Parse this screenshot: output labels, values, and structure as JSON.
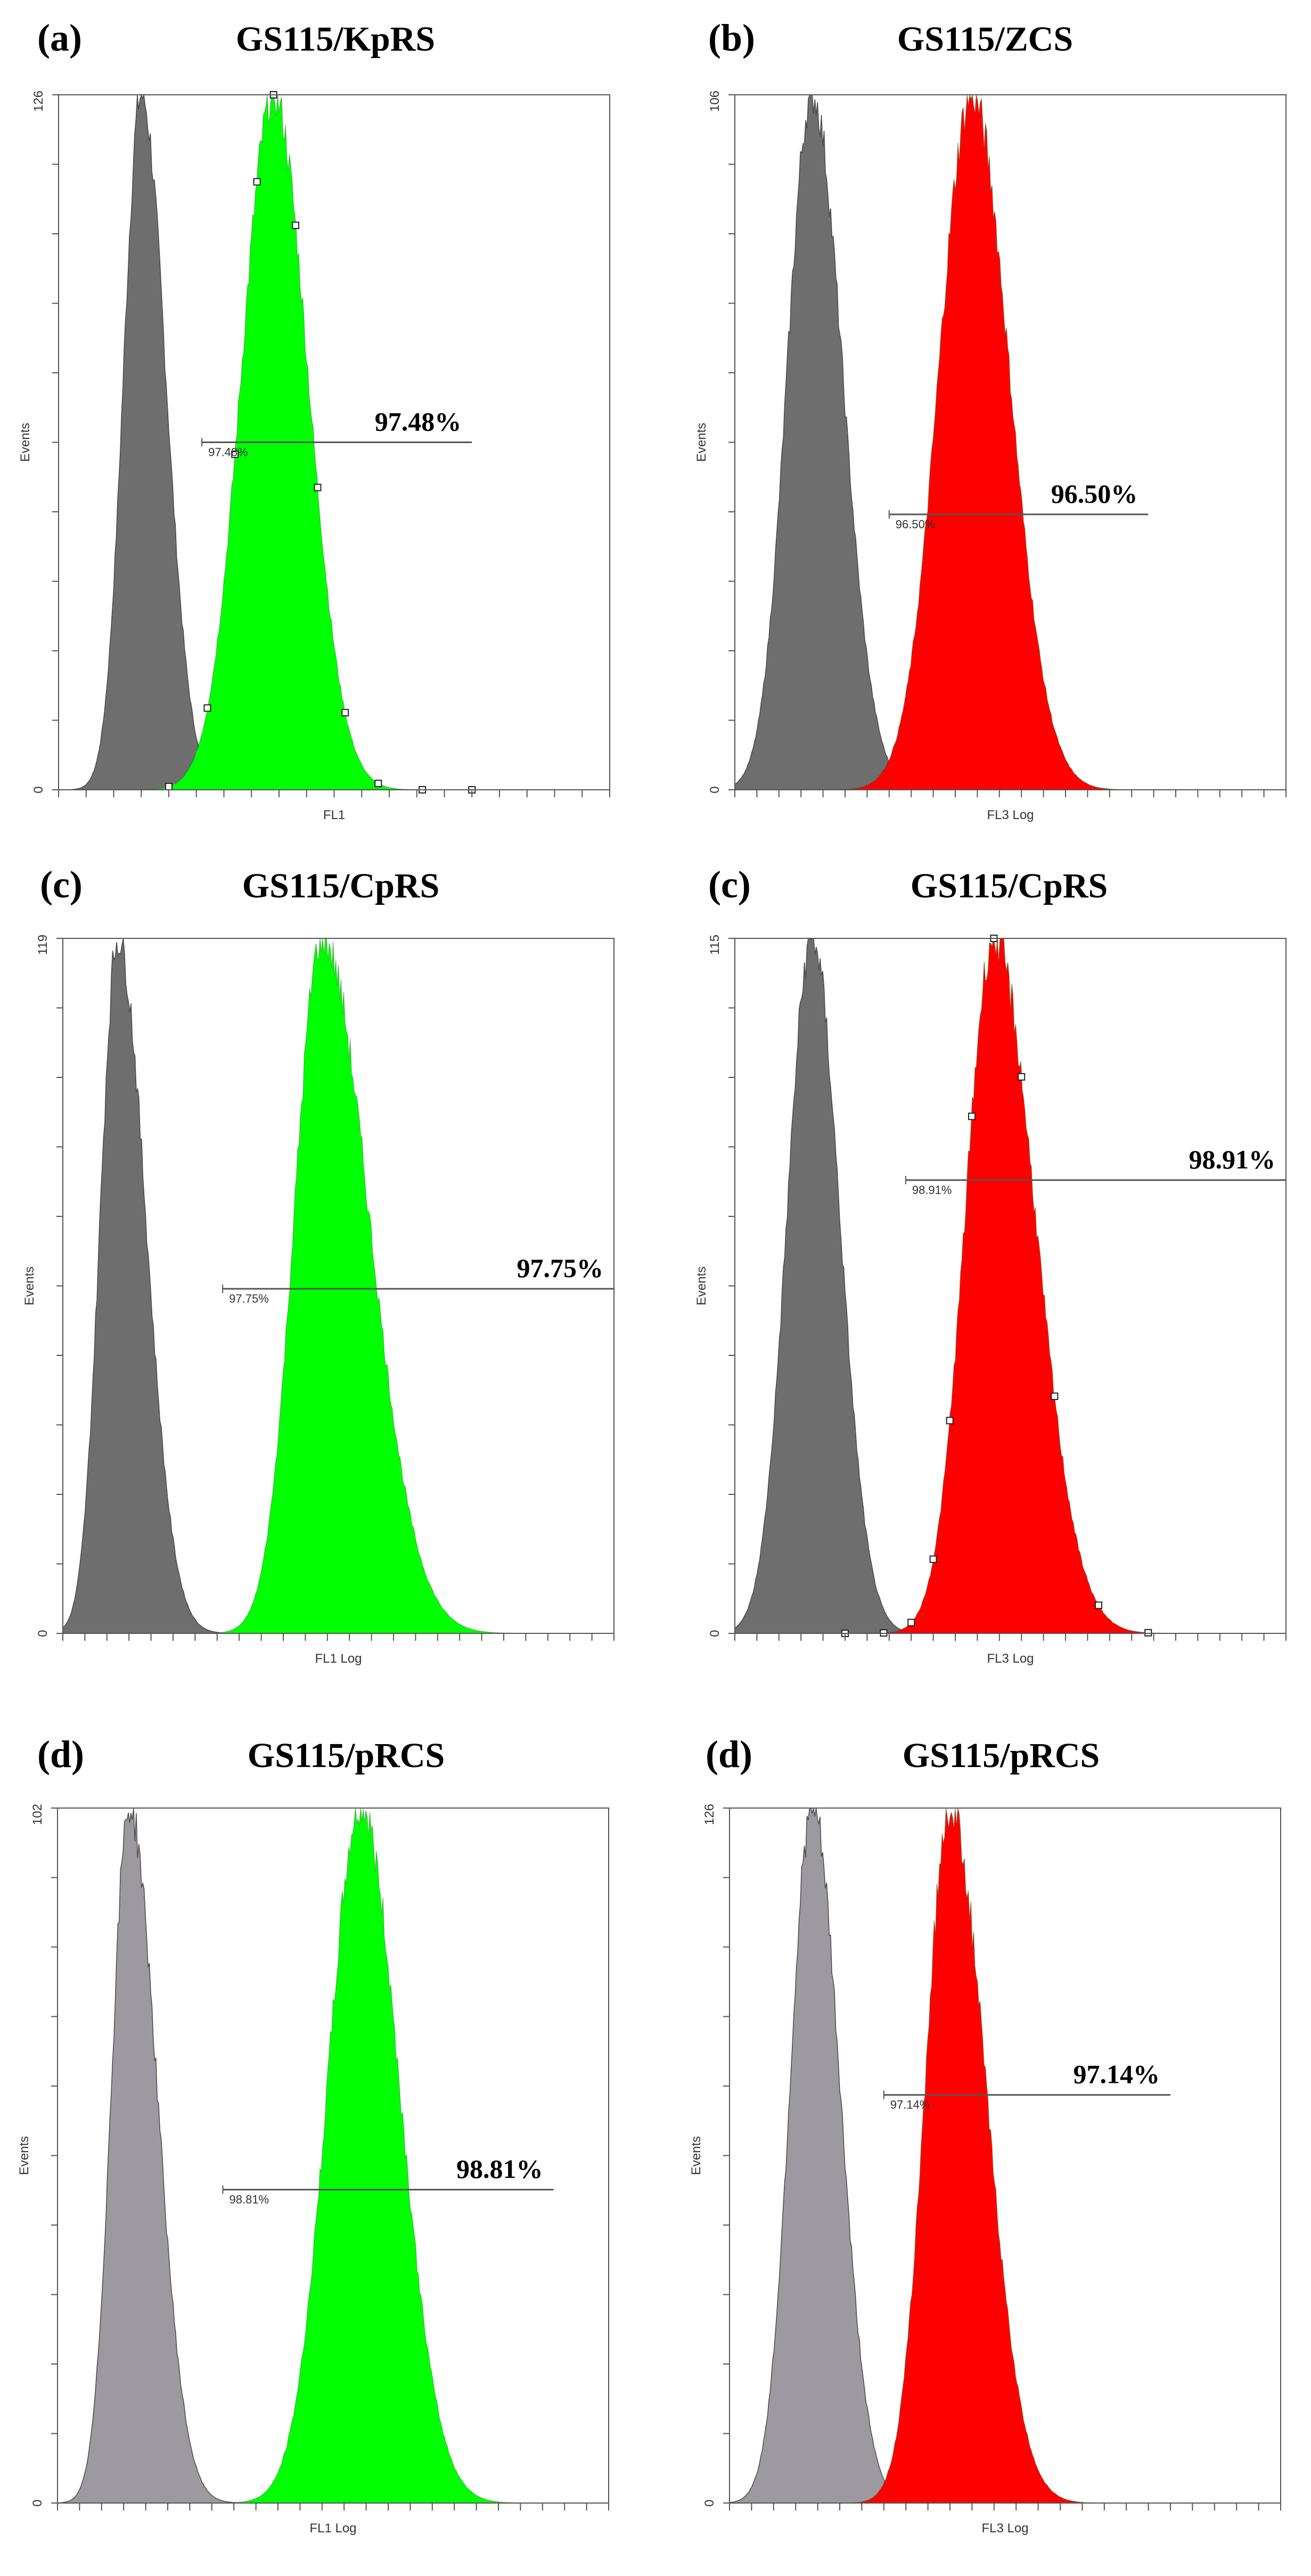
{
  "colors": {
    "control_dark": "#6e6e6e",
    "control_light": "#9c9aa0",
    "green": "#00ff00",
    "red": "#ff0000",
    "frame": "#555555",
    "gate": "#555555"
  },
  "chart_data": [
    {
      "type": "area",
      "panel": "(a)",
      "title": "GS115/KpRS",
      "xlabel": "FL1",
      "ylabel": "Events",
      "ymax_label": "126",
      "ymid_label": "",
      "ymin_label": "0",
      "ylim": [
        0,
        126
      ],
      "xlim": [
        0,
        1
      ],
      "gate_label": "97.48%",
      "gate_small": "97.48%",
      "gate": {
        "x_start": 0.26,
        "x_end": 0.75,
        "y": 63
      },
      "control": {
        "peak_x": 0.15,
        "peak_y": 126,
        "left_sigma": 0.032,
        "right_sigma": 0.044,
        "color_key": "control_dark"
      },
      "sample": {
        "peak_x": 0.39,
        "peak_y": 126,
        "left_sigma": 0.058,
        "right_sigma": 0.062,
        "color_key": "green"
      },
      "markers": true,
      "x_ticks": 21
    },
    {
      "type": "area",
      "panel": "(b)",
      "title": "GS115/ZCS",
      "xlabel": "FL3 Log",
      "ylabel": "Events",
      "ymax_label": "106",
      "ymid_label": "",
      "ymin_label": "0",
      "ylim": [
        0,
        106
      ],
      "xlim": [
        0,
        1
      ],
      "gate_label": "96.50%",
      "gate_small": "96.50%",
      "gate": {
        "x_start": 0.28,
        "x_end": 0.75,
        "y": 42
      },
      "control": {
        "peak_x": 0.14,
        "peak_y": 106,
        "left_sigma": 0.045,
        "right_sigma": 0.055,
        "color_key": "control_dark"
      },
      "sample": {
        "peak_x": 0.43,
        "peak_y": 106,
        "left_sigma": 0.06,
        "right_sigma": 0.068,
        "color_key": "red"
      },
      "markers": false,
      "x_ticks": 26
    },
    {
      "type": "area",
      "panel": "(c)",
      "title": "GS115/CpRS",
      "xlabel": "FL1 Log",
      "ylabel": "Events",
      "ymax_label": "119",
      "ymid_label": "",
      "ymin_label": "0",
      "ylim": [
        0,
        119
      ],
      "xlim": [
        0,
        1
      ],
      "gate_label": "97.75%",
      "gate_small": "97.75%",
      "gate": {
        "x_start": 0.29,
        "x_end": 1.0,
        "y": 59
      },
      "control": {
        "peak_x": 0.1,
        "peak_y": 119,
        "left_sigma": 0.032,
        "right_sigma": 0.05,
        "color_key": "control_dark"
      },
      "sample": {
        "peak_x": 0.47,
        "peak_y": 119,
        "left_sigma": 0.05,
        "right_sigma": 0.085,
        "color_key": "green"
      },
      "markers": false,
      "x_ticks": 26
    },
    {
      "type": "area",
      "panel": "(c)",
      "title": "GS115/CpRS",
      "xlabel": "FL3 Log",
      "ylabel": "Events",
      "ymax_label": "115",
      "ymid_label": "",
      "ymin_label": "0",
      "ylim": [
        0,
        115
      ],
      "xlim": [
        0,
        1
      ],
      "gate_label": "98.91%",
      "gate_small": "98.91%",
      "gate": {
        "x_start": 0.31,
        "x_end": 1.0,
        "y": 75
      },
      "control": {
        "peak_x": 0.14,
        "peak_y": 115,
        "left_sigma": 0.045,
        "right_sigma": 0.05,
        "color_key": "control_dark"
      },
      "sample": {
        "peak_x": 0.47,
        "peak_y": 115,
        "left_sigma": 0.052,
        "right_sigma": 0.075,
        "color_key": "red"
      },
      "markers": true,
      "x_ticks": 26
    },
    {
      "type": "area",
      "panel": "(d)",
      "title": "GS115/pRCS",
      "xlabel": "FL1 Log",
      "ylabel": "Events",
      "ymax_label": "102",
      "ymid_label": "",
      "ymin_label": "0",
      "ylim": [
        0,
        102
      ],
      "xlim": [
        0,
        1
      ],
      "gate_label": "98.81%",
      "gate_small": "98.81%",
      "gate": {
        "x_start": 0.3,
        "x_end": 0.9,
        "y": 46
      },
      "control": {
        "peak_x": 0.13,
        "peak_y": 102,
        "left_sigma": 0.032,
        "right_sigma": 0.05,
        "color_key": "control_light"
      },
      "sample": {
        "peak_x": 0.55,
        "peak_y": 102,
        "left_sigma": 0.06,
        "right_sigma": 0.07,
        "color_key": "green"
      },
      "markers": false,
      "x_ticks": 26
    },
    {
      "type": "area",
      "panel": "(d)",
      "title": "GS115/pRCS",
      "xlabel": "FL3 Log",
      "ylabel": "Events",
      "ymax_label": "126",
      "ymid_label": "",
      "ymin_label": "0",
      "ylim": [
        0,
        126
      ],
      "xlim": [
        0,
        1
      ],
      "gate_label": "97.14%",
      "gate_small": "97.14%",
      "gate": {
        "x_start": 0.28,
        "x_end": 0.8,
        "y": 74
      },
      "control": {
        "peak_x": 0.15,
        "peak_y": 126,
        "left_sigma": 0.04,
        "right_sigma": 0.05,
        "color_key": "control_light"
      },
      "sample": {
        "peak_x": 0.4,
        "peak_y": 126,
        "left_sigma": 0.045,
        "right_sigma": 0.065,
        "color_key": "red"
      },
      "markers": false,
      "x_ticks": 26
    }
  ]
}
